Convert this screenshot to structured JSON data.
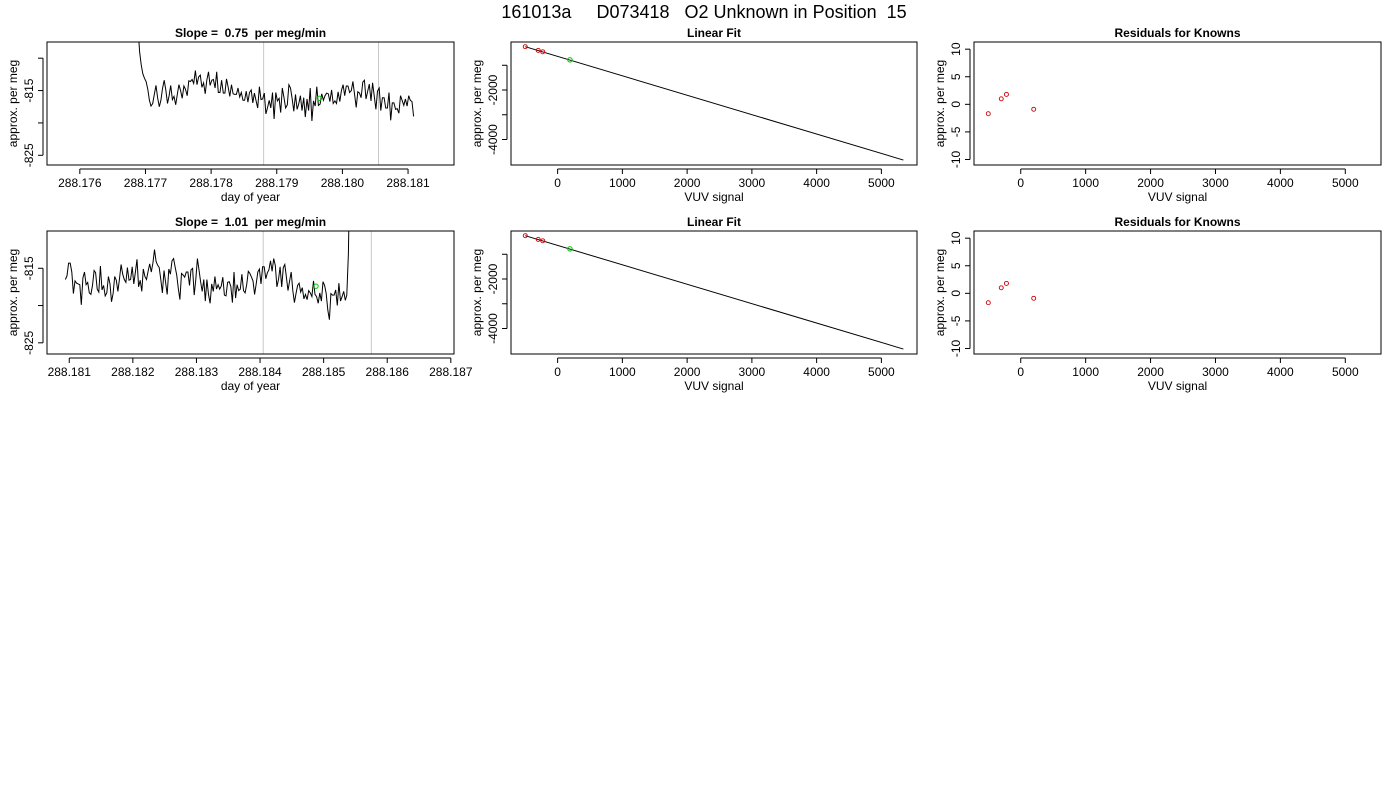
{
  "figure": {
    "title": "161013a     D073418   O2 Unknown in Position  15"
  },
  "colors": {
    "line": "#000000",
    "box": "#000000",
    "vline": "#c8c8c8",
    "known": "#cc0000",
    "unknown": "#00cc00"
  },
  "chart_data": [
    {
      "id": "ts1",
      "type": "line",
      "title": "Slope =  0.75  per meg/min",
      "xlabel": "day of year",
      "ylabel": "approx. per meg",
      "xlim": [
        288.1755,
        288.1817
      ],
      "ylim": [
        -826.5,
        -807.5
      ],
      "xticks": [
        288.176,
        288.177,
        288.178,
        288.179,
        288.18,
        288.181
      ],
      "xtick_labels": [
        "288.176",
        "288.177",
        "288.178",
        "288.179",
        "288.180",
        "288.181"
      ],
      "yticks": [
        -825,
        -820,
        -815,
        -810
      ],
      "ytick_labels": [
        "-825",
        "",
        "-815",
        ""
      ],
      "vlines": [
        288.1788,
        288.18055
      ],
      "series": [
        {
          "x_start": 288.17686,
          "x_step": 2.5e-05,
          "values": [
            -800,
            -805,
            -809,
            -811,
            -812.4,
            -813.1,
            -813.6,
            -814.8,
            -816.5,
            -817.4,
            -817,
            -815.6,
            -814.2,
            -816.1,
            -817.5,
            -816.5,
            -814.7,
            -813.4,
            -814.9,
            -817,
            -815.8,
            -814.2,
            -816.4,
            -815.9,
            -817.2,
            -815.6,
            -814.1,
            -815,
            -816.2,
            -814.3,
            -814.8,
            -815.8,
            -813.5,
            -813.6,
            -813.3,
            -813.9,
            -811.9,
            -814.1,
            -812.9,
            -812.6,
            -814.5,
            -813.8,
            -815.5,
            -813.4,
            -812.1,
            -814.2,
            -813.4,
            -813.3,
            -814.6,
            -812.1,
            -815.3,
            -815.3,
            -813.4,
            -815.4,
            -815.4,
            -813.2,
            -814.5,
            -815.9,
            -814.1,
            -815.5,
            -815.6,
            -815.6,
            -814.6,
            -816,
            -815.3,
            -816.5,
            -816.5,
            -815.1,
            -816.8,
            -815.3,
            -814.9,
            -816.9,
            -815.4,
            -816.6,
            -817.7,
            -814.4,
            -816.4,
            -816.3,
            -815.4,
            -818.6,
            -817.6,
            -816.5,
            -817.7,
            -815.3,
            -819.4,
            -815.3,
            -816.6,
            -816.2,
            -818.4,
            -814.6,
            -816.1,
            -817.7,
            -817.2,
            -814.1,
            -814.6,
            -816.3,
            -818.2,
            -815.6,
            -817.9,
            -817.1,
            -815.8,
            -818.1,
            -816.1,
            -819.1,
            -816.3,
            -818.1,
            -814.6,
            -819.7,
            -816.6,
            -817.4,
            -814.4,
            -817.3,
            -817.1,
            -815.5,
            -816.5,
            -815.8,
            -815.4,
            -815.5,
            -816.7,
            -814.9,
            -817,
            -816.6,
            -817,
            -815.2,
            -816.7,
            -815,
            -814.1,
            -815.8,
            -814.3,
            -814.3,
            -815.3,
            -815,
            -813.6,
            -815.5,
            -817.6,
            -815.2,
            -815.4,
            -816.1,
            -813.7,
            -813.4,
            -816.3,
            -815.1,
            -814,
            -816.6,
            -813.8,
            -815.8,
            -817.9,
            -815.1,
            -814.6,
            -818.1,
            -816.1,
            -816.1,
            -817.7,
            -817.7,
            -815.3,
            -819.6,
            -816.9,
            -816.9,
            -817.9,
            -817.8,
            -818.5,
            -815.8,
            -816.5,
            -817.3,
            -816.3,
            -817.4,
            -815.8,
            -816.5,
            -816.7,
            -819
          ]
        }
      ],
      "markers": [
        {
          "name": "unknown",
          "x": 288.17965,
          "y": -816.2
        }
      ]
    },
    {
      "id": "fit1",
      "type": "scatter",
      "title": "Linear Fit",
      "xlabel": "VUV signal",
      "ylabel": "approx. per meg",
      "xlim": [
        -720,
        5550
      ],
      "ylim": [
        -5030,
        -60
      ],
      "xticks": [
        0,
        1000,
        2000,
        3000,
        4000,
        5000
      ],
      "xtick_labels": [
        "0",
        "1000",
        "2000",
        "3000",
        "4000",
        "5000"
      ],
      "yticks": [
        -4000,
        -3000,
        -2000,
        -1000
      ],
      "ytick_labels": [
        "-4000",
        "",
        "-2000",
        ""
      ],
      "fit_line": {
        "x": [
          -500,
          5340
        ],
        "y": [
          -250,
          -4830
        ]
      },
      "known_points": {
        "x": [
          -500,
          -300,
          -230
        ],
        "y": [
          -248,
          -400,
          -455
        ]
      },
      "unknown_points": {
        "x": [
          190
        ],
        "y": [
          -780
        ]
      }
    },
    {
      "id": "res1",
      "type": "scatter",
      "title": "Residuals for Knowns",
      "xlabel": "VUV signal",
      "ylabel": "approx. per meg",
      "xlim": [
        -720,
        5550
      ],
      "ylim": [
        -11,
        11.3
      ],
      "xticks": [
        0,
        1000,
        2000,
        3000,
        4000,
        5000
      ],
      "xtick_labels": [
        "0",
        "1000",
        "2000",
        "3000",
        "4000",
        "5000"
      ],
      "yticks": [
        -10,
        -5,
        0,
        5,
        10
      ],
      "ytick_labels": [
        "-10",
        "-5",
        "0",
        "5",
        "10"
      ],
      "known_points": {
        "x": [
          -500,
          -300,
          -220,
          200
        ],
        "y": [
          -1.7,
          1,
          1.8,
          -0.9
        ]
      }
    },
    {
      "id": "ts2",
      "type": "line",
      "title": "Slope =  1.01  per meg/min",
      "xlabel": "day of year",
      "ylabel": "approx. per meg",
      "xlim": [
        288.18065,
        288.18705
      ],
      "ylim": [
        -826.5,
        -810
      ],
      "xticks": [
        288.181,
        288.182,
        288.183,
        288.184,
        288.185,
        288.186,
        288.187
      ],
      "xtick_labels": [
        "288.181",
        "288.182",
        "288.183",
        "288.184",
        "288.185",
        "288.186",
        "288.187"
      ],
      "yticks": [
        -825,
        -820,
        -815
      ],
      "ytick_labels": [
        "-825",
        "",
        "-815"
      ],
      "vlines": [
        288.18405,
        288.18575
      ],
      "series": [
        {
          "x_start": 288.18094,
          "x_step": 2.5e-05,
          "values": [
            -816.5,
            -816,
            -814.3,
            -814.3,
            -815.5,
            -818.4,
            -816.7,
            -817,
            -817.1,
            -817.2,
            -819.9,
            -816.3,
            -815.5,
            -817.2,
            -816.9,
            -818.3,
            -818.5,
            -817.3,
            -815.3,
            -815.6,
            -817.8,
            -818.2,
            -814.7,
            -817.9,
            -817.3,
            -818.7,
            -818.3,
            -816.1,
            -817.1,
            -819.5,
            -818.4,
            -816.1,
            -816.6,
            -818.1,
            -816.4,
            -814.5,
            -815.8,
            -816.5,
            -816.9,
            -814.9,
            -816.6,
            -816.5,
            -814.8,
            -817.1,
            -815.5,
            -813.8,
            -817.5,
            -816.6,
            -818.1,
            -815.1,
            -816.1,
            -816.5,
            -815.4,
            -814.4,
            -815.5,
            -814.3,
            -812.5,
            -814.1,
            -814.6,
            -814.9,
            -816.5,
            -818.3,
            -815.3,
            -816.9,
            -818.5,
            -815.1,
            -815.8,
            -814,
            -813.7,
            -814.8,
            -815.9,
            -817.7,
            -819.2,
            -815.7,
            -815.9,
            -816.2,
            -815.5,
            -815.5,
            -817.3,
            -815.2,
            -815,
            -818.6,
            -816.5,
            -813.7,
            -815.2,
            -816.8,
            -818.1,
            -816.5,
            -819.4,
            -816.5,
            -818.5,
            -819.7,
            -817.1,
            -818.1,
            -816.1,
            -817.8,
            -817.2,
            -817.8,
            -817.4,
            -816.2,
            -818.6,
            -818.7,
            -816.9,
            -816.8,
            -817.4,
            -819.6,
            -815.5,
            -819,
            -817.2,
            -818,
            -817.8,
            -815.8,
            -818,
            -818.3,
            -817.2,
            -815.4,
            -815.7,
            -816.2,
            -816.7,
            -818.5,
            -817.1,
            -815.5,
            -815.1,
            -817.1,
            -814.8,
            -814.8,
            -816.4,
            -815.6,
            -815.2,
            -814,
            -815.4,
            -813.7,
            -814.6,
            -817.5,
            -816.5,
            -814.8,
            -817.5,
            -814.9,
            -814.5,
            -816.2,
            -818,
            -816.7,
            -815.5,
            -818,
            -819.6,
            -818.4,
            -817.3,
            -817,
            -818.2,
            -817.6,
            -819.1,
            -818.5,
            -819.2,
            -818,
            -818.3,
            -818.8,
            -816.7,
            -818.5,
            -818.8,
            -819.7,
            -818.3,
            -819.4,
            -816.8,
            -817.3,
            -818.4,
            -820.6,
            -821.9,
            -818.4,
            -818.6,
            -818.6,
            -817.9,
            -820,
            -817,
            -819.4,
            -818.8,
            -818.1,
            -819.3,
            -818.6,
            -813,
            -800
          ]
        }
      ],
      "markers": [
        {
          "name": "unknown",
          "x": 288.18488,
          "y": -817.4
        }
      ]
    },
    {
      "id": "fit2",
      "type": "scatter",
      "title": "Linear Fit",
      "xlabel": "VUV signal",
      "ylabel": "approx. per meg",
      "xlim": [
        -720,
        5550
      ],
      "ylim": [
        -5030,
        -60
      ],
      "xticks": [
        0,
        1000,
        2000,
        3000,
        4000,
        5000
      ],
      "xtick_labels": [
        "0",
        "1000",
        "2000",
        "3000",
        "4000",
        "5000"
      ],
      "yticks": [
        -4000,
        -3000,
        -2000,
        -1000
      ],
      "ytick_labels": [
        "-4000",
        "",
        "-2000",
        ""
      ],
      "fit_line": {
        "x": [
          -500,
          5340
        ],
        "y": [
          -250,
          -4830
        ]
      },
      "known_points": {
        "x": [
          -500,
          -300,
          -230
        ],
        "y": [
          -248,
          -400,
          -455
        ]
      },
      "unknown_points": {
        "x": [
          190
        ],
        "y": [
          -780
        ]
      }
    },
    {
      "id": "res2",
      "type": "scatter",
      "title": "Residuals for Knowns",
      "xlabel": "VUV signal",
      "ylabel": "approx. per meg",
      "xlim": [
        -720,
        5550
      ],
      "ylim": [
        -11,
        11.3
      ],
      "xticks": [
        0,
        1000,
        2000,
        3000,
        4000,
        5000
      ],
      "xtick_labels": [
        "0",
        "1000",
        "2000",
        "3000",
        "4000",
        "5000"
      ],
      "yticks": [
        -10,
        -5,
        0,
        5,
        10
      ],
      "ytick_labels": [
        "-10",
        "-5",
        "0",
        "5",
        "10"
      ],
      "known_points": {
        "x": [
          -500,
          -300,
          -220,
          200
        ],
        "y": [
          -1.7,
          1,
          1.8,
          -0.9
        ]
      }
    }
  ]
}
